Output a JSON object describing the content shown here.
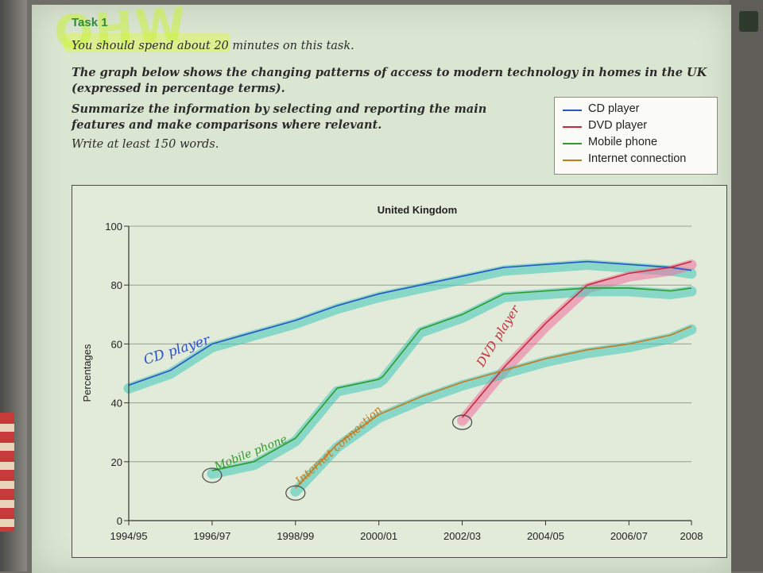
{
  "header": {
    "task_label": "Task 1",
    "scribble": "OHW",
    "line1": "You should spend about 20 minutes on this task.",
    "line2": "The graph below shows the changing patterns of access to modern technology in homes in the UK (expressed in percentage terms).",
    "line3": "Summarize the information by selecting and reporting the main features and make comparisons where relevant.",
    "line4": "Write at least 150 words."
  },
  "colors": {
    "cd": "#2a52c9",
    "dvd": "#cc2a3a",
    "mobile": "#2f9a2a",
    "internet": "#c8781e",
    "highlight_teal": "#3fc9b8",
    "highlight_pink": "#f06fa0"
  },
  "chart_data": {
    "type": "line",
    "title": "United Kingdom",
    "xlabel": "",
    "ylabel": "Percentages",
    "ylim": [
      0,
      100
    ],
    "yticks": [
      0,
      20,
      40,
      60,
      80,
      100
    ],
    "x_range": [
      1994.5,
      2008
    ],
    "x_ticks": [
      {
        "x": 1994.5,
        "label": "1994/95"
      },
      {
        "x": 1996.5,
        "label": "1996/97"
      },
      {
        "x": 1998.5,
        "label": "1998/99"
      },
      {
        "x": 2000.5,
        "label": "2000/01"
      },
      {
        "x": 2002.5,
        "label": "2002/03"
      },
      {
        "x": 2004.5,
        "label": "2004/05"
      },
      {
        "x": 2006.5,
        "label": "2006/07"
      },
      {
        "x": 2008,
        "label": "2008"
      }
    ],
    "grid": true,
    "legend_position": "top-right",
    "series": [
      {
        "name": "CD player",
        "color_key": "cd",
        "x": [
          1994.5,
          1995.5,
          1996.5,
          1997.5,
          1998.5,
          1999.5,
          2000.5,
          2001.5,
          2002.5,
          2003.5,
          2004.5,
          2005.5,
          2006.5,
          2007.5,
          2008
        ],
        "y": [
          46,
          51,
          60,
          64,
          68,
          73,
          77,
          80,
          83,
          86,
          87,
          88,
          87,
          86,
          85
        ]
      },
      {
        "name": "DVD player",
        "color_key": "dvd",
        "x": [
          2002.5,
          2003.5,
          2004.5,
          2005.5,
          2006.5,
          2007.5,
          2008
        ],
        "y": [
          35,
          52,
          67,
          80,
          84,
          86,
          88
        ]
      },
      {
        "name": "Mobile phone",
        "color_key": "mobile",
        "x": [
          1996.5,
          1997.5,
          1998.5,
          1999.5,
          2000.5,
          2000.6,
          2001.5,
          2002.5,
          2003.5,
          2004.5,
          2005.5,
          2006.5,
          2007.5,
          2008
        ],
        "y": [
          17,
          20,
          28,
          45,
          48,
          49,
          65,
          70,
          77,
          78,
          79,
          79,
          78,
          79
        ]
      },
      {
        "name": "Internet connection",
        "color_key": "internet",
        "x": [
          1998.5,
          1999.5,
          2000.5,
          2001.5,
          2002.5,
          2003.5,
          2004.5,
          2005.5,
          2006.5,
          2007.5,
          2008
        ],
        "y": [
          11,
          26,
          36,
          42,
          47,
          51,
          55,
          58,
          60,
          63,
          66
        ]
      }
    ],
    "annotations": [
      "CD player",
      "Mobile phone",
      "Internet connection",
      "DVD player"
    ]
  }
}
